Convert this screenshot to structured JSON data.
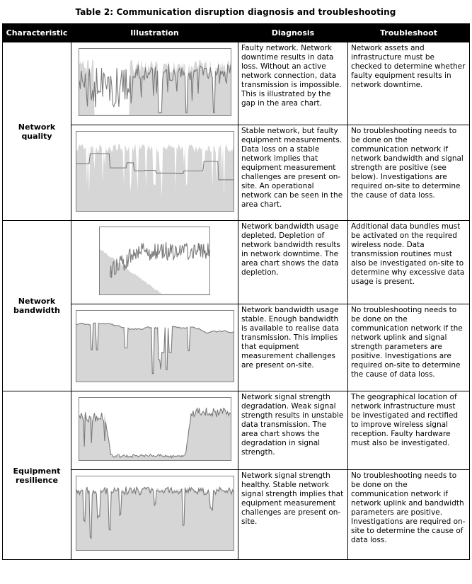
{
  "title": "Table 2: Communication disruption diagnosis and troubleshooting",
  "columns": [
    "Characteristic",
    "Illustration",
    "Diagnosis",
    "Troubleshoot"
  ],
  "chart_style": {
    "area_fill": "#d6d6d6",
    "line_color": "#7a7a7a",
    "box_border": "#7f7f7f"
  },
  "rows": [
    {
      "characteristic": "Network quality",
      "subrows": [
        {
          "illustration": {
            "name": "network-downtime-area-chart",
            "pattern": "gap-blocks",
            "description": "Area chart with a gap showing network downtime, jagged measurement line overlay"
          },
          "diagnosis": "Faulty network. Network downtime results in data loss. Without an active network connection, data transmission is impossible. This is illustrated by the gap in the area chart.",
          "troubleshoot": "Network assets and infrastructure must be checked to determine whether faulty equipment results in network downtime."
        },
        {
          "illustration": {
            "name": "stable-network-area-chart",
            "pattern": "comb-steps",
            "description": "Full-width spiky area chart of an operational network with stepped equipment measurement line"
          },
          "diagnosis": "Stable network, but faulty equipment measurements. Data loss on a stable network implies that equipment measurement challenges are present on-site. An operational network can be seen in the area chart.",
          "troubleshoot": "No troubleshooting needs to be done on the communication network if network bandwidth and signal strength are positive (see below). Investigations are required on-site to determine the cause of data loss."
        }
      ]
    },
    {
      "characteristic": "Network bandwidth",
      "subrows": [
        {
          "illustration": {
            "name": "bandwidth-depletion-area-chart",
            "pattern": "depleting",
            "description": "Declining area chart showing bandwidth depletion with noisy usage line"
          },
          "diagnosis": "Network bandwidth usage depleted. Depletion of network bandwidth results in network downtime. The area chart shows the data depletion.",
          "troubleshoot": "Additional data bundles must be activated on the required wireless node. Data transmission routines must also be investigated on-site to determine why excessive data usage is present."
        },
        {
          "illustration": {
            "name": "stable-bandwidth-area-chart",
            "pattern": "smooth-dips",
            "description": "Gently declining area chart with narrow deep dips showing stable bandwidth usage"
          },
          "diagnosis": "Network bandwidth usage stable. Enough bandwidth is available to realise data transmission. This implies that equipment measurement challenges are present on-site.",
          "troubleshoot": "No troubleshooting needs to be done on the communication network if the network uplink and signal strength parameters are positive. Investigations are required on-site to determine the cause of data loss."
        }
      ]
    },
    {
      "characteristic": "Equipment resilience",
      "subrows": [
        {
          "illustration": {
            "name": "signal-degradation-area-chart",
            "pattern": "u-shape",
            "description": "Area chart high at both ends with long low middle section showing signal strength degradation"
          },
          "diagnosis": "Network signal strength degradation. Weak signal strength results in unstable data transmission. The area chart shows the degradation in signal strength.",
          "troubleshoot": "The geographical location of network infrastructure must be investigated and rectified to improve wireless signal reception. Faulty hardware must also be investigated."
        },
        {
          "illustration": {
            "name": "healthy-signal-area-chart",
            "pattern": "spiky-dips",
            "description": "Full-width area chart with a few narrow dips showing healthy stable signal strength"
          },
          "diagnosis": "Network signal strength healthy. Stable network signal strength implies that equipment measurement challenges are present on-site.",
          "troubleshoot": "No troubleshooting needs to be done on the communication network if network uplink and bandwidth parameters are positive. Investigations are required on-site to determine the cause of data loss."
        }
      ]
    }
  ]
}
